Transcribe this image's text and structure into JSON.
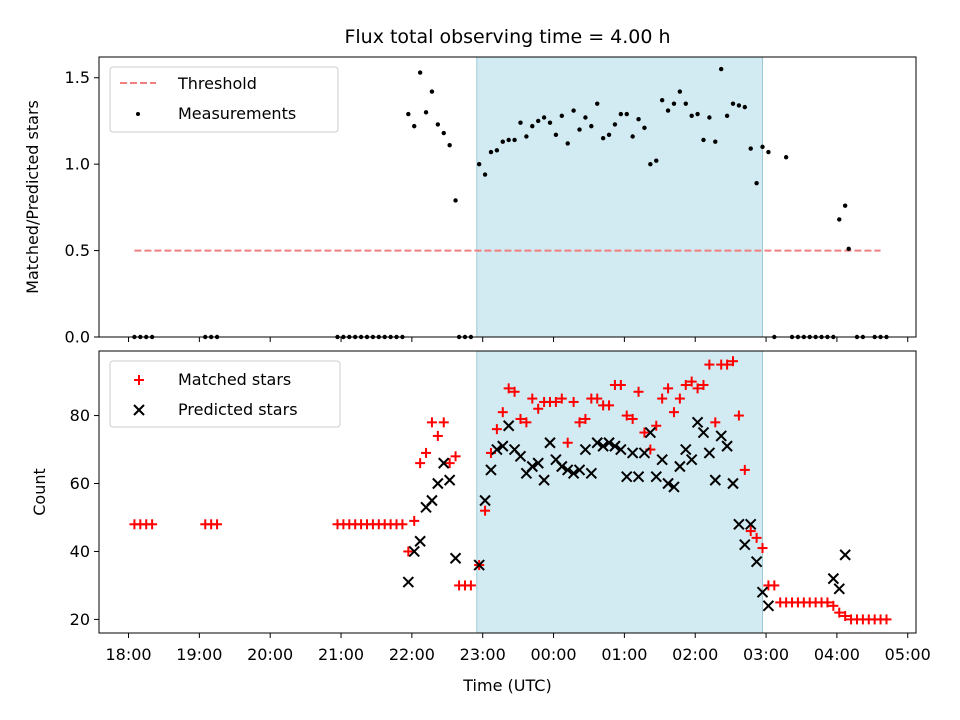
{
  "chart_data": [
    {
      "type": "scatter",
      "title": "Flux total observing time = 4.00 h",
      "ylabel": "Matched/Predicted stars",
      "xlim": [
        "17:35",
        "05:07"
      ],
      "ylim": [
        0,
        1.62
      ],
      "yticks": [
        "0.0",
        "0.5",
        "1.0",
        "1.5"
      ],
      "highlight": {
        "start": "22:55",
        "end": "02:57",
        "color": "#add8e6"
      },
      "legend_position": "upper-left",
      "threshold": {
        "name": "Threshold",
        "value": 0.5,
        "x_start": "18:05",
        "x_end": "04:37",
        "color": "#f08080",
        "style": "dashed"
      },
      "series": [
        {
          "name": "Measurements",
          "color": "#000000",
          "points": [
            [
              "18:05",
              0
            ],
            [
              "18:10",
              0
            ],
            [
              "18:15",
              0
            ],
            [
              "18:20",
              0
            ],
            [
              "19:05",
              0
            ],
            [
              "19:10",
              0
            ],
            [
              "19:15",
              0
            ],
            [
              "20:57",
              0
            ],
            [
              "21:02",
              0
            ],
            [
              "21:07",
              0
            ],
            [
              "21:12",
              0
            ],
            [
              "21:17",
              0
            ],
            [
              "21:22",
              0
            ],
            [
              "21:27",
              0
            ],
            [
              "21:32",
              0
            ],
            [
              "21:37",
              0
            ],
            [
              "21:42",
              0
            ],
            [
              "21:47",
              0
            ],
            [
              "21:52",
              0
            ],
            [
              "21:57",
              1.29
            ],
            [
              "22:02",
              1.22
            ],
            [
              "22:07",
              1.53
            ],
            [
              "22:12",
              1.3
            ],
            [
              "22:17",
              1.42
            ],
            [
              "22:22",
              1.23
            ],
            [
              "22:27",
              1.18
            ],
            [
              "22:32",
              1.11
            ],
            [
              "22:37",
              0.79
            ],
            [
              "22:40",
              0
            ],
            [
              "22:45",
              0
            ],
            [
              "22:50",
              0
            ],
            [
              "22:57",
              1.0
            ],
            [
              "23:02",
              0.94
            ],
            [
              "23:07",
              1.07
            ],
            [
              "23:12",
              1.08
            ],
            [
              "23:17",
              1.13
            ],
            [
              "23:22",
              1.14
            ],
            [
              "23:27",
              1.14
            ],
            [
              "23:32",
              1.24
            ],
            [
              "23:37",
              1.16
            ],
            [
              "23:42",
              1.22
            ],
            [
              "23:47",
              1.25
            ],
            [
              "23:52",
              1.27
            ],
            [
              "23:57",
              1.24
            ],
            [
              "00:02",
              1.17
            ],
            [
              "00:07",
              1.28
            ],
            [
              "00:12",
              1.12
            ],
            [
              "00:17",
              1.31
            ],
            [
              "00:22",
              1.2
            ],
            [
              "00:27",
              1.27
            ],
            [
              "00:32",
              1.22
            ],
            [
              "00:37",
              1.35
            ],
            [
              "00:42",
              1.15
            ],
            [
              "00:47",
              1.17
            ],
            [
              "00:52",
              1.23
            ],
            [
              "00:57",
              1.29
            ],
            [
              "01:02",
              1.29
            ],
            [
              "01:07",
              1.16
            ],
            [
              "01:12",
              1.26
            ],
            [
              "01:17",
              1.21
            ],
            [
              "01:22",
              1.0
            ],
            [
              "01:27",
              1.02
            ],
            [
              "01:32",
              1.37
            ],
            [
              "01:37",
              1.31
            ],
            [
              "01:42",
              1.35
            ],
            [
              "01:47",
              1.42
            ],
            [
              "01:52",
              1.35
            ],
            [
              "01:57",
              1.28
            ],
            [
              "02:02",
              1.29
            ],
            [
              "02:07",
              1.14
            ],
            [
              "02:12",
              1.27
            ],
            [
              "02:17",
              1.13
            ],
            [
              "02:22",
              1.55
            ],
            [
              "02:27",
              1.28
            ],
            [
              "02:32",
              1.35
            ],
            [
              "02:37",
              1.34
            ],
            [
              "02:42",
              1.33
            ],
            [
              "02:47",
              1.09
            ],
            [
              "02:52",
              0.89
            ],
            [
              "02:57",
              1.1
            ],
            [
              "03:02",
              1.07
            ],
            [
              "03:07",
              0
            ],
            [
              "03:17",
              1.04
            ],
            [
              "03:22",
              0
            ],
            [
              "03:27",
              0
            ],
            [
              "03:32",
              0
            ],
            [
              "03:37",
              0
            ],
            [
              "03:42",
              0
            ],
            [
              "03:47",
              0
            ],
            [
              "03:52",
              0
            ],
            [
              "03:57",
              0
            ],
            [
              "04:02",
              0.68
            ],
            [
              "04:07",
              0.76
            ],
            [
              "04:10",
              0.51
            ],
            [
              "04:17",
              0
            ],
            [
              "04:22",
              0
            ],
            [
              "04:32",
              0
            ],
            [
              "04:37",
              0
            ],
            [
              "04:42",
              0
            ]
          ]
        }
      ]
    },
    {
      "type": "scatter",
      "xlabel": "Time (UTC)",
      "ylabel": "Count",
      "xlim": [
        "17:35",
        "05:07"
      ],
      "ylim": [
        16,
        99
      ],
      "xticks": [
        "18:00",
        "19:00",
        "20:00",
        "21:00",
        "22:00",
        "23:00",
        "00:00",
        "01:00",
        "02:00",
        "03:00",
        "04:00",
        "05:00"
      ],
      "yticks": [
        "20",
        "40",
        "60",
        "80"
      ],
      "highlight": {
        "start": "22:55",
        "end": "02:57",
        "color": "#add8e6"
      },
      "legend_position": "upper-left",
      "series": [
        {
          "name": "Matched stars",
          "marker": "plus",
          "color": "#ff0000",
          "points": [
            [
              "18:05",
              48
            ],
            [
              "18:10",
              48
            ],
            [
              "18:15",
              48
            ],
            [
              "18:20",
              48
            ],
            [
              "19:05",
              48
            ],
            [
              "19:10",
              48
            ],
            [
              "19:15",
              48
            ],
            [
              "20:57",
              48
            ],
            [
              "21:02",
              48
            ],
            [
              "21:07",
              48
            ],
            [
              "21:12",
              48
            ],
            [
              "21:17",
              48
            ],
            [
              "21:22",
              48
            ],
            [
              "21:27",
              48
            ],
            [
              "21:32",
              48
            ],
            [
              "21:37",
              48
            ],
            [
              "21:42",
              48
            ],
            [
              "21:47",
              48
            ],
            [
              "21:52",
              48
            ],
            [
              "21:57",
              40
            ],
            [
              "22:02",
              49
            ],
            [
              "22:07",
              66
            ],
            [
              "22:12",
              69
            ],
            [
              "22:17",
              78
            ],
            [
              "22:22",
              74
            ],
            [
              "22:27",
              78
            ],
            [
              "22:32",
              66
            ],
            [
              "22:37",
              68
            ],
            [
              "22:40",
              30
            ],
            [
              "22:45",
              30
            ],
            [
              "22:50",
              30
            ],
            [
              "22:57",
              36
            ],
            [
              "23:02",
              52
            ],
            [
              "23:07",
              69
            ],
            [
              "23:12",
              76
            ],
            [
              "23:17",
              81
            ],
            [
              "23:22",
              88
            ],
            [
              "23:27",
              87
            ],
            [
              "23:32",
              79
            ],
            [
              "23:37",
              78
            ],
            [
              "23:42",
              85
            ],
            [
              "23:47",
              82
            ],
            [
              "23:52",
              84
            ],
            [
              "23:57",
              84
            ],
            [
              "00:02",
              84
            ],
            [
              "00:07",
              85
            ],
            [
              "00:12",
              72
            ],
            [
              "00:17",
              84
            ],
            [
              "00:22",
              78
            ],
            [
              "00:27",
              79
            ],
            [
              "00:32",
              85
            ],
            [
              "00:37",
              85
            ],
            [
              "00:42",
              83
            ],
            [
              "00:47",
              83
            ],
            [
              "00:52",
              89
            ],
            [
              "00:57",
              89
            ],
            [
              "01:02",
              80
            ],
            [
              "01:07",
              79
            ],
            [
              "01:12",
              87
            ],
            [
              "01:17",
              75
            ],
            [
              "01:22",
              70
            ],
            [
              "01:27",
              77
            ],
            [
              "01:32",
              85
            ],
            [
              "01:37",
              88
            ],
            [
              "01:42",
              81
            ],
            [
              "01:47",
              85
            ],
            [
              "01:52",
              89
            ],
            [
              "01:57",
              90
            ],
            [
              "02:02",
              88
            ],
            [
              "02:07",
              89
            ],
            [
              "02:12",
              95
            ],
            [
              "02:17",
              78
            ],
            [
              "02:22",
              95
            ],
            [
              "02:27",
              95
            ],
            [
              "02:32",
              96
            ],
            [
              "02:37",
              80
            ],
            [
              "02:42",
              64
            ],
            [
              "02:47",
              46
            ],
            [
              "02:52",
              44
            ],
            [
              "02:57",
              41
            ],
            [
              "03:02",
              30
            ],
            [
              "03:07",
              30
            ],
            [
              "03:12",
              25
            ],
            [
              "03:17",
              25
            ],
            [
              "03:22",
              25
            ],
            [
              "03:27",
              25
            ],
            [
              "03:32",
              25
            ],
            [
              "03:37",
              25
            ],
            [
              "03:42",
              25
            ],
            [
              "03:47",
              25
            ],
            [
              "03:52",
              25
            ],
            [
              "03:57",
              24
            ],
            [
              "04:02",
              22
            ],
            [
              "04:07",
              21
            ],
            [
              "04:12",
              20
            ],
            [
              "04:17",
              20
            ],
            [
              "04:22",
              20
            ],
            [
              "04:27",
              20
            ],
            [
              "04:32",
              20
            ],
            [
              "04:37",
              20
            ],
            [
              "04:42",
              20
            ]
          ]
        },
        {
          "name": "Predicted stars",
          "marker": "x",
          "color": "#000000",
          "points": [
            [
              "21:57",
              31
            ],
            [
              "22:02",
              40
            ],
            [
              "22:07",
              43
            ],
            [
              "22:12",
              53
            ],
            [
              "22:17",
              55
            ],
            [
              "22:22",
              60
            ],
            [
              "22:27",
              66
            ],
            [
              "22:32",
              61
            ],
            [
              "22:37",
              38
            ],
            [
              "22:57",
              36
            ],
            [
              "23:02",
              55
            ],
            [
              "23:07",
              64
            ],
            [
              "23:12",
              70
            ],
            [
              "23:17",
              71
            ],
            [
              "23:22",
              77
            ],
            [
              "23:27",
              70
            ],
            [
              "23:32",
              68
            ],
            [
              "23:37",
              63
            ],
            [
              "23:42",
              65
            ],
            [
              "23:47",
              66
            ],
            [
              "23:52",
              61
            ],
            [
              "23:57",
              72
            ],
            [
              "00:02",
              67
            ],
            [
              "00:07",
              65
            ],
            [
              "00:12",
              64
            ],
            [
              "00:17",
              63
            ],
            [
              "00:22",
              64
            ],
            [
              "00:27",
              70
            ],
            [
              "00:32",
              63
            ],
            [
              "00:37",
              72
            ],
            [
              "00:42",
              71
            ],
            [
              "00:47",
              72
            ],
            [
              "00:52",
              71
            ],
            [
              "00:57",
              70
            ],
            [
              "01:02",
              62
            ],
            [
              "01:07",
              69
            ],
            [
              "01:12",
              62
            ],
            [
              "01:17",
              69
            ],
            [
              "01:22",
              75
            ],
            [
              "01:27",
              62
            ],
            [
              "01:32",
              67
            ],
            [
              "01:37",
              60
            ],
            [
              "01:42",
              59
            ],
            [
              "01:47",
              65
            ],
            [
              "01:52",
              70
            ],
            [
              "01:57",
              67
            ],
            [
              "02:02",
              78
            ],
            [
              "02:07",
              75
            ],
            [
              "02:12",
              69
            ],
            [
              "02:17",
              61
            ],
            [
              "02:22",
              74
            ],
            [
              "02:27",
              71
            ],
            [
              "02:32",
              60
            ],
            [
              "02:37",
              48
            ],
            [
              "02:42",
              42
            ],
            [
              "02:47",
              48
            ],
            [
              "02:52",
              37
            ],
            [
              "02:57",
              28
            ],
            [
              "03:02",
              24
            ],
            [
              "03:57",
              32
            ],
            [
              "04:02",
              29
            ],
            [
              "04:07",
              39
            ]
          ]
        }
      ]
    }
  ]
}
